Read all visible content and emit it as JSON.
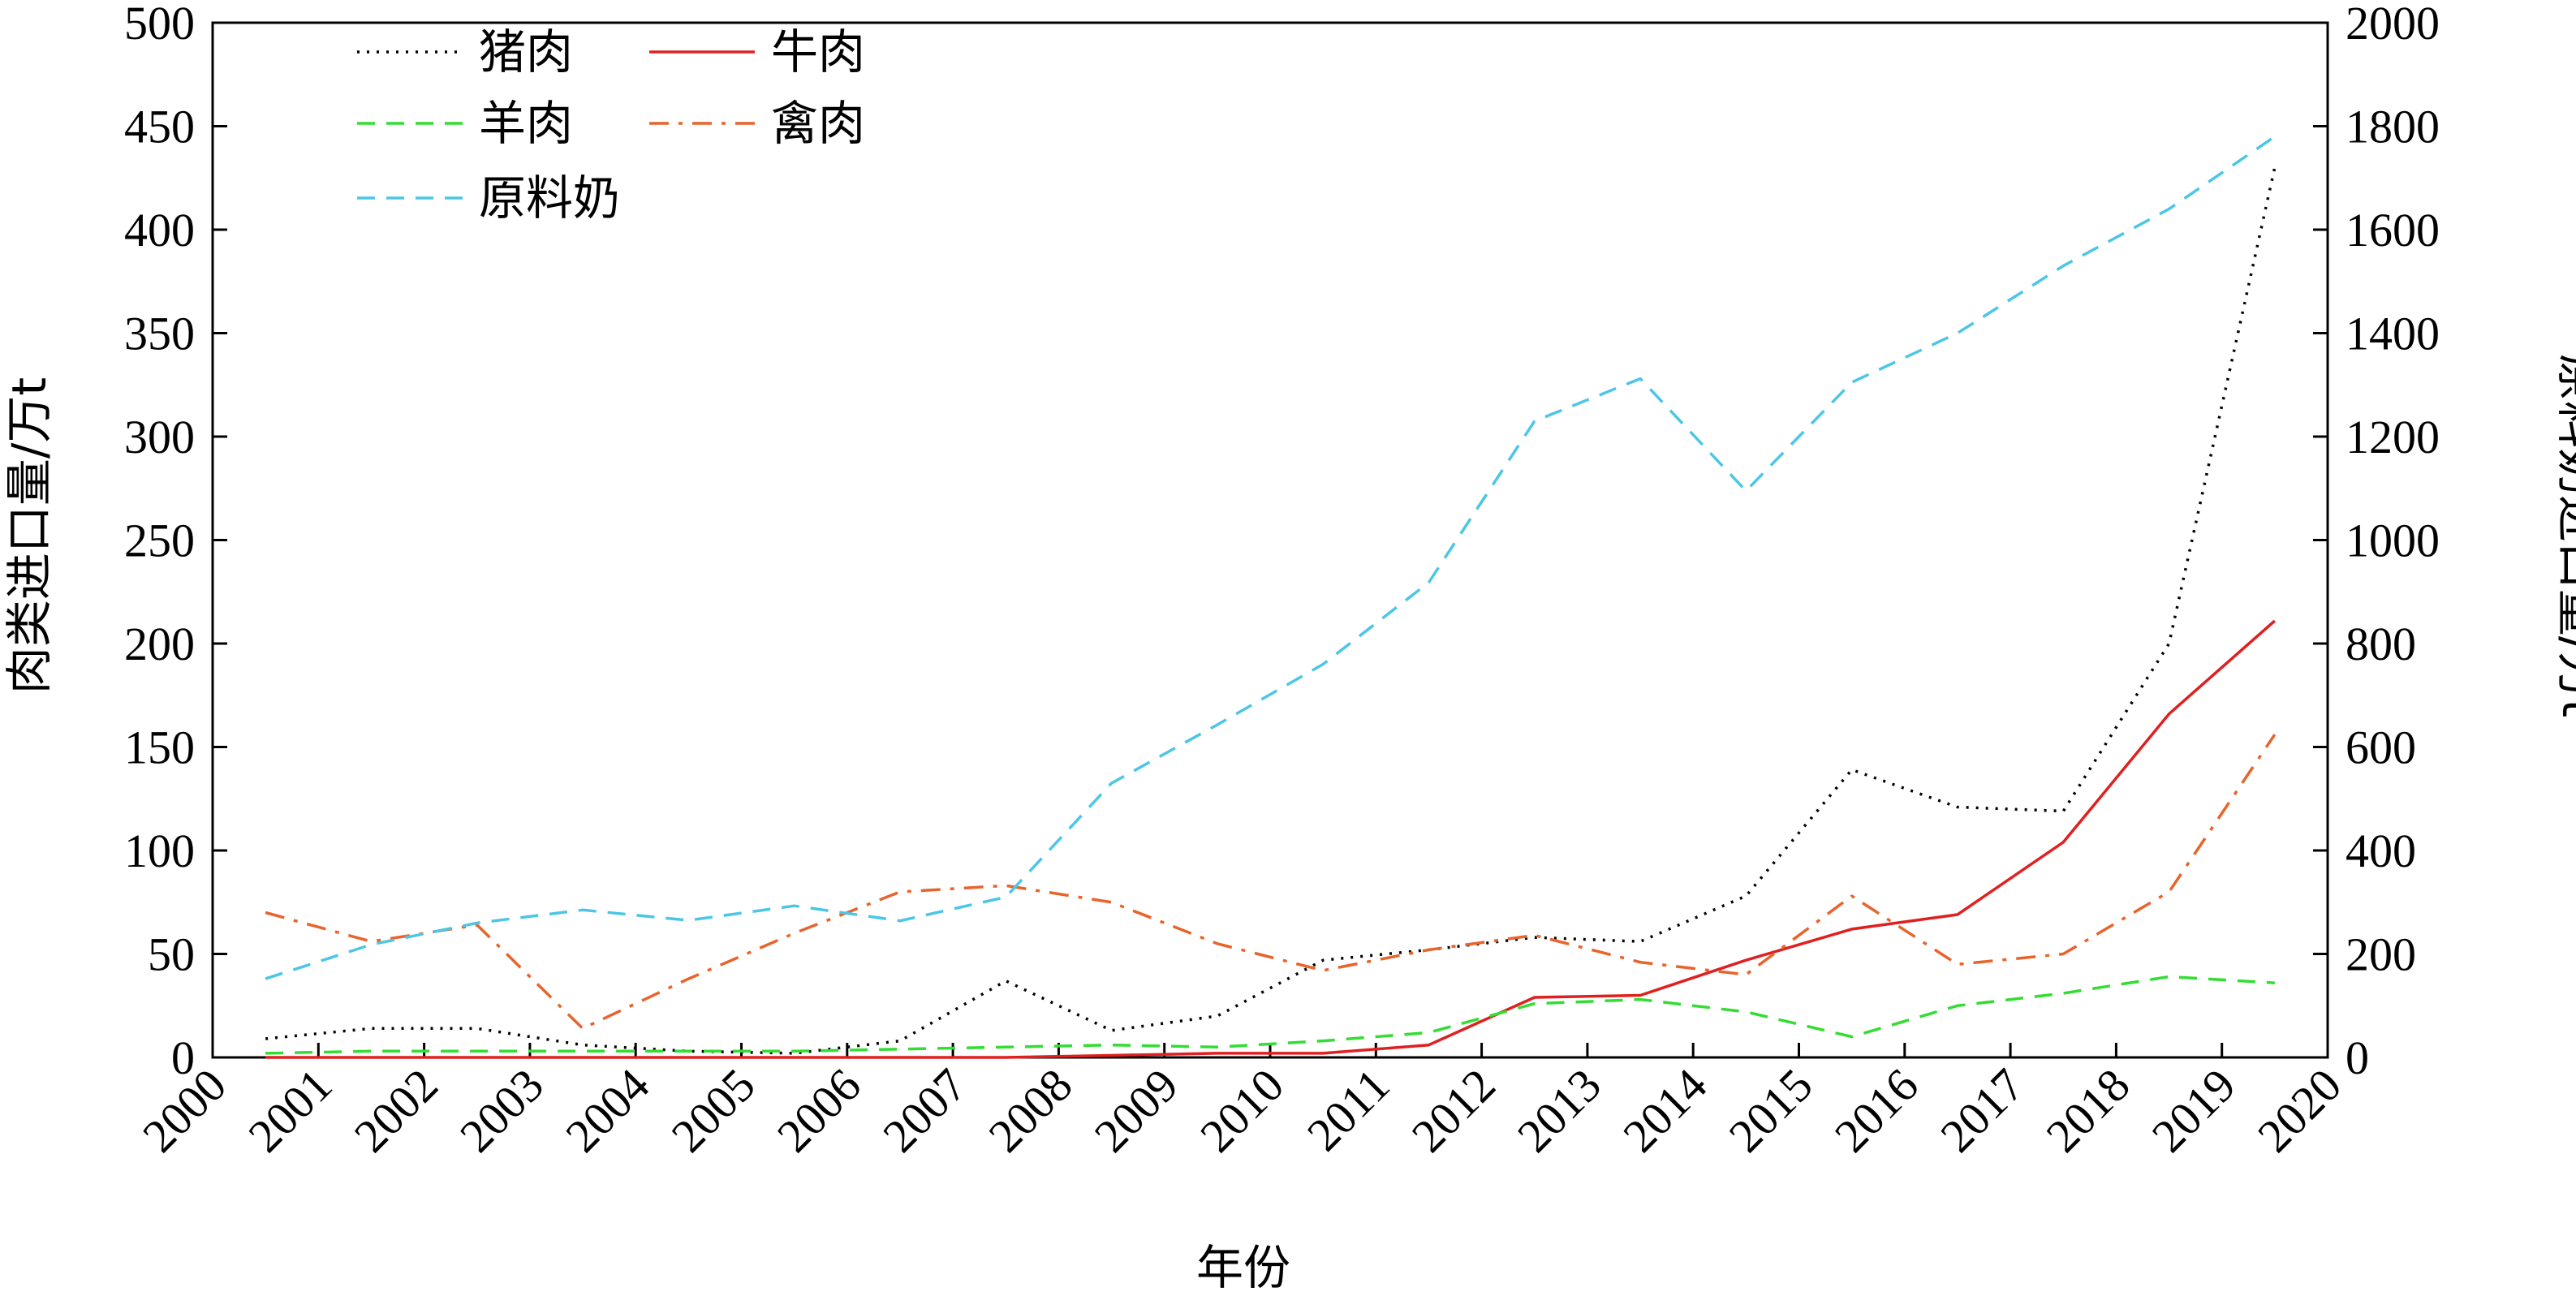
{
  "chart_data": {
    "type": "line",
    "xlabel": "年份",
    "ylabel_left": "肉类进口量/万t",
    "ylabel_right": "原料奶进口量/万t",
    "x_ticks": [
      "2000",
      "2001",
      "2002",
      "2003",
      "2004",
      "2005",
      "2006",
      "2007",
      "2008",
      "2009",
      "2010",
      "2011",
      "2012",
      "2013",
      "2014",
      "2015",
      "2016",
      "2017",
      "2018",
      "2019",
      "2020"
    ],
    "ylim_left": [
      0,
      500
    ],
    "yticks_left": [
      0,
      50,
      100,
      150,
      200,
      250,
      300,
      350,
      400,
      450,
      500
    ],
    "ylim_right": [
      0,
      2000
    ],
    "yticks_right": [
      0,
      200,
      400,
      600,
      800,
      1000,
      1200,
      1400,
      1600,
      1800,
      2000
    ],
    "x": [
      2000.5,
      2001.5,
      2002.5,
      2003.5,
      2004.5,
      2005.5,
      2006.5,
      2007.5,
      2008.5,
      2009.5,
      2010.5,
      2011.5,
      2012.5,
      2013.5,
      2014.5,
      2015.5,
      2016.5,
      2017.5,
      2018.5,
      2019.5
    ],
    "grid": false,
    "legend_position": "top-left",
    "series": [
      {
        "name": "猪肉",
        "axis": "left",
        "color": "#000000",
        "style": "dotted",
        "values": [
          9,
          14,
          14,
          6,
          3,
          2,
          8,
          37,
          13,
          20,
          47,
          52,
          58,
          56,
          78,
          139,
          121,
          119,
          200,
          430
        ]
      },
      {
        "name": "牛肉",
        "axis": "left",
        "color": "#e02020",
        "style": "solid",
        "values": [
          0,
          0,
          0,
          0,
          0,
          0,
          0,
          0,
          1,
          2,
          2,
          6,
          29,
          30,
          47,
          62,
          69,
          104,
          166,
          211
        ]
      },
      {
        "name": "羊肉",
        "axis": "left",
        "color": "#33dd33",
        "style": "dashed",
        "values": [
          2,
          3,
          3,
          3,
          3,
          3,
          4,
          5,
          6,
          5,
          8,
          12,
          26,
          28,
          22,
          10,
          25,
          31,
          39,
          36
        ]
      },
      {
        "name": "禽肉",
        "axis": "left",
        "color": "#e8642c",
        "style": "dashdot",
        "values": [
          70,
          56,
          64,
          14,
          38,
          60,
          80,
          83,
          75,
          55,
          42,
          52,
          59,
          46,
          40,
          78,
          45,
          50,
          80,
          156
        ]
      },
      {
        "name": "原料奶",
        "axis": "right",
        "color": "#4cc6e6",
        "style": "dashed",
        "values": [
          152,
          218,
          260,
          285,
          265,
          293,
          264,
          310,
          530,
          643,
          760,
          918,
          1230,
          1312,
          1095,
          1305,
          1400,
          1530,
          1640,
          1780
        ]
      }
    ]
  }
}
